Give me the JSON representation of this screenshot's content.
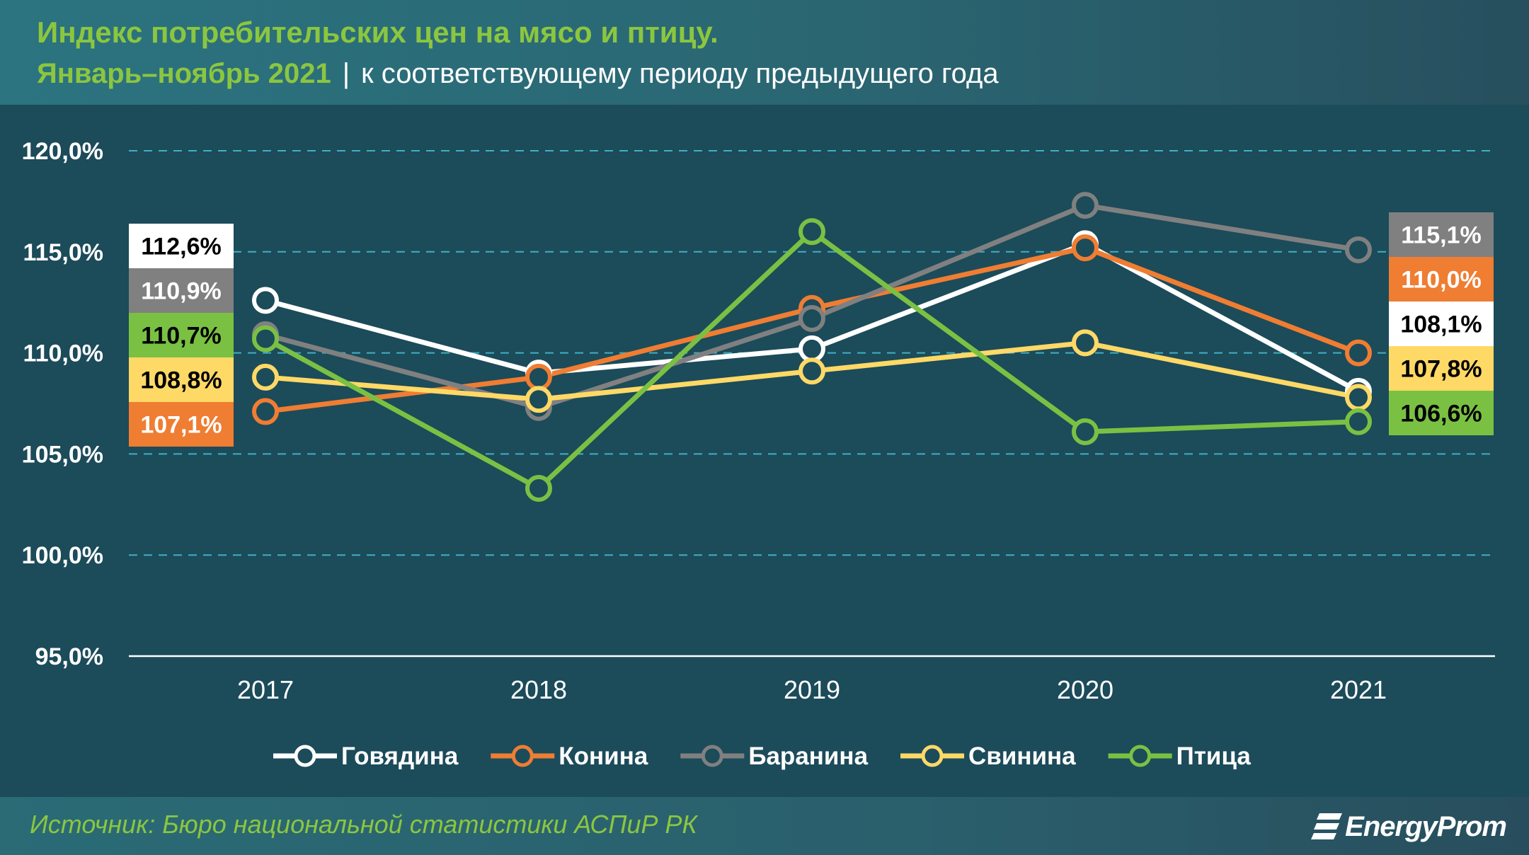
{
  "header": {
    "title": "Индекс потребительских цен на мясо и птицу.",
    "subtitle_accent": "Январь–ноябрь 2021",
    "subtitle_sep": "|",
    "subtitle_rest": "к соответствующему периоду предыдущего года"
  },
  "footer": {
    "source": "Источник: Бюро национальной статистики АСПиР РК",
    "brand": "EnergyProm"
  },
  "colors": {
    "background": "#1c4b5a",
    "header_bg": "#2a6a75",
    "accent_green": "#8cc63f",
    "grid": "#3fb0c4",
    "axis": "#ffffff"
  },
  "chart_data": {
    "type": "line",
    "title": "Индекс потребительских цен на мясо и птицу.",
    "subtitle": "Январь–ноябрь 2021 | к соответствующему периоду предыдущего года",
    "x": [
      "2017",
      "2018",
      "2019",
      "2020",
      "2021"
    ],
    "ylim": [
      95,
      120
    ],
    "y_ticks": [
      "95,0%",
      "100,0%",
      "105,0%",
      "110,0%",
      "115,0%",
      "120,0%"
    ],
    "y_tick_values": [
      95,
      100,
      105,
      110,
      115,
      120
    ],
    "grid": "horizontal dashed",
    "legend_position": "bottom",
    "series": [
      {
        "name": "Говядина",
        "color": "#ffffff",
        "text_color": "#000000",
        "values": [
          112.6,
          109.0,
          110.2,
          115.4,
          108.1
        ],
        "start_label": "112,6%",
        "end_label": "108,1%"
      },
      {
        "name": "Конина",
        "color": "#ef7d32",
        "text_color": "#ffffff",
        "values": [
          107.1,
          108.8,
          112.2,
          115.2,
          110.0
        ],
        "start_label": "107,1%",
        "end_label": "110,0%"
      },
      {
        "name": "Баранина",
        "color": "#808080",
        "text_color": "#ffffff",
        "values": [
          110.9,
          107.3,
          111.7,
          117.3,
          115.1
        ],
        "start_label": "110,9%",
        "end_label": "115,1%"
      },
      {
        "name": "Свинина",
        "color": "#ffd966",
        "text_color": "#000000",
        "values": [
          108.8,
          107.7,
          109.1,
          110.5,
          107.8
        ],
        "start_label": "108,8%",
        "end_label": "107,8%"
      },
      {
        "name": "Птица",
        "color": "#7ac143",
        "text_color": "#000000",
        "values": [
          110.7,
          103.3,
          116.0,
          106.1,
          106.6
        ],
        "start_label": "110,7%",
        "end_label": "106,6%"
      }
    ],
    "start_label_order": [
      "Говядина",
      "Баранина",
      "Птица",
      "Свинина",
      "Конина"
    ],
    "end_label_order": [
      "Баранина",
      "Конина",
      "Говядина",
      "Свинина",
      "Птица"
    ]
  }
}
